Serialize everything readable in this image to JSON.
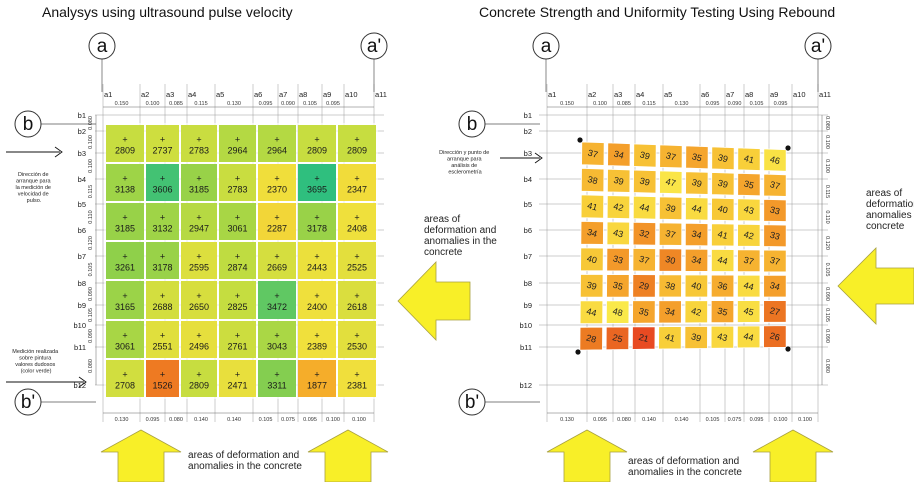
{
  "left": {
    "title": "Analysys using ultrasound pulse velocity",
    "corner_labels": [
      "a",
      "a'",
      "b",
      "b'"
    ],
    "col_labels": [
      "a1",
      "a2",
      "a3",
      "a4",
      "a5",
      "a6",
      "a7",
      "a8",
      "a9",
      "a10",
      "a11"
    ],
    "row_labels": [
      "b1",
      "b2",
      "b3",
      "b4",
      "b5",
      "b6",
      "b7",
      "b8",
      "b9",
      "b10",
      "b11",
      "b12"
    ],
    "top_dims": [
      "0.150",
      "0.100",
      "0.085",
      "0.115",
      "0.130",
      "0.095",
      "0.090",
      "0.105",
      "0.095"
    ],
    "bottom_dims": [
      "0.130",
      "0.095",
      "0.080",
      "0.140",
      "0.140",
      "0.105",
      "0.075",
      "0.095",
      "0.100",
      "0.100"
    ],
    "side_dims": [
      "0.080",
      "0.100",
      "0.100",
      "0.115",
      "0.110",
      "0.120",
      "0.105",
      "0.090",
      "0.105",
      "0.090",
      "0.080"
    ],
    "values": [
      [
        "2809",
        "2737",
        "2783",
        "2964",
        "2964",
        "2809",
        "2809"
      ],
      [
        "3138",
        "3606",
        "3185",
        "2783",
        "2370",
        "3695",
        "2347"
      ],
      [
        "3185",
        "3132",
        "2947",
        "3061",
        "2287",
        "3178",
        "2408"
      ],
      [
        "3261",
        "3178",
        "2595",
        "2874",
        "2669",
        "2443",
        "2525"
      ],
      [
        "3165",
        "2688",
        "2650",
        "2825",
        "3472",
        "2400",
        "2618"
      ],
      [
        "3061",
        "2551",
        "2496",
        "2761",
        "3043",
        "2389",
        "2530"
      ],
      [
        "2708",
        "1526",
        "2809",
        "2471",
        "3311",
        "1877",
        "2381"
      ]
    ],
    "start_note": [
      "Dirección de",
      "arranque para",
      "la medición de",
      "velocidad de",
      "pulso."
    ],
    "measure_note": [
      "Medición realizada",
      "sobre pintura",
      "valores dudosos",
      "(color verde)"
    ],
    "side_annotation": [
      "areas of",
      "deformation and",
      "anomalies in the",
      "concrete"
    ],
    "bottom_annotation": [
      "areas of deformation and",
      "anomalies in the concrete"
    ]
  },
  "right": {
    "title": "Concrete Strength and Uniformity Testing Using Rebound",
    "corner_labels": [
      "a",
      "a'",
      "b",
      "b'"
    ],
    "col_labels": [
      "a1",
      "a2",
      "a3",
      "a4",
      "a5",
      "a6",
      "a7",
      "a8",
      "a9",
      "a10",
      "a11"
    ],
    "row_labels": [
      "b1",
      "b2",
      "b3",
      "b4",
      "b5",
      "b6",
      "b7",
      "b8",
      "b9",
      "b10",
      "b11",
      "b12"
    ],
    "top_dims": [
      "0.150",
      "0.100",
      "0.085",
      "0.115",
      "0.130",
      "0.095",
      "0.090",
      "0.105",
      "0.095"
    ],
    "bottom_dims": [
      "0.130",
      "0.095",
      "0.080",
      "0.140",
      "0.140",
      "0.105",
      "0.075",
      "0.095",
      "0.100",
      "0.100"
    ],
    "side_dims": [
      "0.080",
      "0.100",
      "0.100",
      "0.115",
      "0.110",
      "0.120",
      "0.105",
      "0.090",
      "0.105",
      "0.090",
      "0.080"
    ],
    "values": [
      [
        "37",
        "34",
        "39",
        "37",
        "35",
        "39",
        "41",
        "46"
      ],
      [
        "38",
        "39",
        "39",
        "47",
        "39",
        "39",
        "35",
        "37"
      ],
      [
        "41",
        "42",
        "44",
        "39",
        "44",
        "40",
        "43",
        "33"
      ],
      [
        "34",
        "43",
        "32",
        "37",
        "34",
        "41",
        "42",
        "33"
      ],
      [
        "40",
        "33",
        "37",
        "30",
        "34",
        "44",
        "37",
        "37"
      ],
      [
        "39",
        "35",
        "29",
        "38",
        "40",
        "36",
        "44",
        "34"
      ],
      [
        "44",
        "48",
        "35",
        "34",
        "42",
        "35",
        "45",
        "27"
      ],
      [
        "28",
        "25",
        "21",
        "41",
        "39",
        "43",
        "44",
        "26"
      ]
    ],
    "start_note": [
      "Dirección y punto de",
      "arranque para",
      "análisis de",
      "esclerometría"
    ],
    "side_annotation": [
      "areas of",
      "deformation and",
      "anomalies in the",
      "concrete"
    ],
    "bottom_annotation": [
      "areas of deformation and",
      "anomalies in the concrete"
    ]
  },
  "colors": {
    "uv_scale": [
      "#2fbf7e",
      "#8fd04a",
      "#c5dd40",
      "#f0e03c",
      "#f7b92c",
      "#ee7a22"
    ],
    "rebound_scale": [
      "#e84a22",
      "#ec7a22",
      "#f5a22c",
      "#f8d13a",
      "#fae94a"
    ],
    "arrow_fill": "#f8ef28",
    "arrow_stroke": "#a8a040"
  }
}
